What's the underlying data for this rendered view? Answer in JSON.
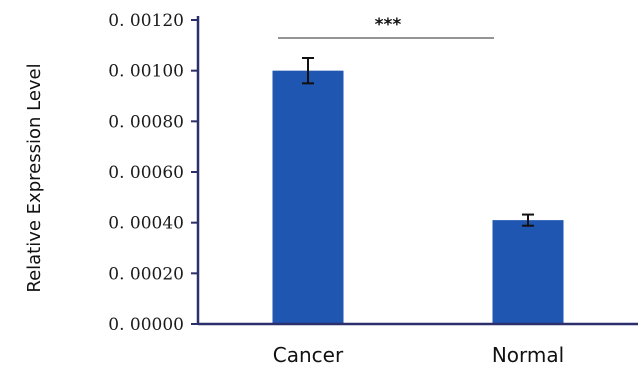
{
  "chart_data": {
    "type": "bar",
    "categories": [
      "Cancer",
      "Normal"
    ],
    "values": [
      0.001,
      0.00041
    ],
    "error": [
      5e-05,
      2.2e-05
    ],
    "ylabel": "Relative Expression Level",
    "xlabel": "",
    "ylim": [
      0,
      0.0012
    ],
    "yticks": [
      "0. 00000",
      "0. 00020",
      "0. 00040",
      "0. 00060",
      "0. 00080",
      "0. 00100",
      "0. 00120"
    ],
    "ytick_values": [
      0,
      0.0002,
      0.0004,
      0.0006,
      0.0008,
      0.001,
      0.0012
    ],
    "grid": false,
    "significance": {
      "text": "***",
      "between": [
        "Cancer",
        "Normal"
      ]
    },
    "colors": {
      "bar": "#1f56b1",
      "axis": "#2b2f6b",
      "sig_line": "#555555"
    }
  }
}
